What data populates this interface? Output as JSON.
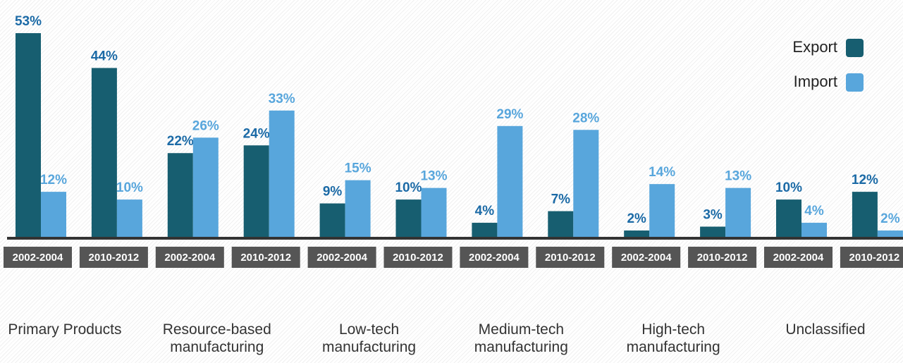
{
  "chart_data": {
    "type": "bar",
    "categories": [
      "2002-2004",
      "2010-2012",
      "2002-2004",
      "2010-2012",
      "2002-2004",
      "2010-2012",
      "2002-2004",
      "2010-2012",
      "2002-2004",
      "2010-2012",
      "2002-2004",
      "2010-2012"
    ],
    "groups": [
      "Primary Products",
      "Resource-based manufacturing",
      "Low-tech manufacturing",
      "Medium-tech manufacturing",
      "High-tech manufacturing",
      "Unclassified"
    ],
    "series": [
      {
        "name": "Export",
        "color": "#175e70",
        "label_color": "#1b6aa6",
        "values": [
          53,
          44,
          22,
          24,
          9,
          10,
          4,
          7,
          2,
          3,
          10,
          12
        ],
        "value_labels": [
          "53%",
          "44%",
          "22%",
          "24%",
          "9%",
          "10%",
          "4%",
          "7%",
          "2%",
          "3%",
          "10%",
          "12%"
        ]
      },
      {
        "name": "Import",
        "color": "#58a6dc",
        "label_color": "#58a6dc",
        "values": [
          12,
          10,
          26,
          33,
          15,
          13,
          29,
          28,
          14,
          13,
          4,
          2
        ],
        "value_labels": [
          "12%",
          "10%",
          "26%",
          "33%",
          "15%",
          "13%",
          "29%",
          "28%",
          "14%",
          "13%",
          "4%",
          "2%"
        ]
      }
    ]
  }
}
